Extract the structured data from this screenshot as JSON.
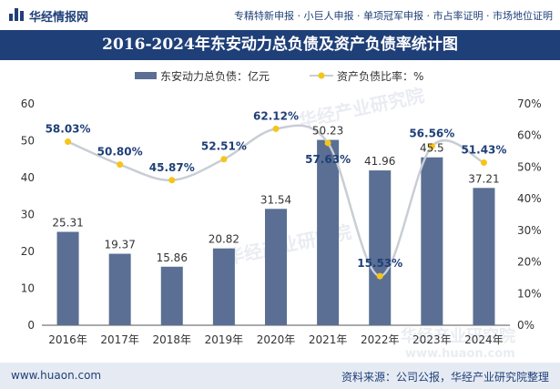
{
  "header": {
    "brand": "华经情报网",
    "tagline": "专精特新申报 · 小巨人申报 · 单项冠军申报 · 市占率证明 · 市场地位证明"
  },
  "footer": {
    "website": "www.huaon.com",
    "source": "资料来源：公司公报，华经产业研究院整理"
  },
  "watermark": {
    "text": "华经产业研究院",
    "url": "www.huaon.com"
  },
  "colors": {
    "bar": "#5a6f93",
    "line": "#c9cdd4",
    "marker": "#f5c518",
    "title_bg": "#1f3f78"
  },
  "chart_data": {
    "type": "bar",
    "title": "2016-2024年东安动力总负债及资产负债率统计图",
    "categories": [
      "2016年",
      "2017年",
      "2018年",
      "2019年",
      "2020年",
      "2021年",
      "2022年",
      "2023年",
      "2024年"
    ],
    "series": [
      {
        "name": "东安动力总负债：亿元",
        "type": "bar",
        "axis": "left",
        "values": [
          25.31,
          19.37,
          15.86,
          20.82,
          31.54,
          50.23,
          41.96,
          45.5,
          37.21
        ],
        "labels": [
          "25.31",
          "19.37",
          "15.86",
          "20.82",
          "31.54",
          "50.23",
          "41.96",
          "45.5",
          "37.21"
        ]
      },
      {
        "name": "资产负债比率：%",
        "type": "line",
        "axis": "right",
        "values": [
          58.03,
          50.8,
          45.87,
          52.51,
          62.12,
          57.63,
          15.53,
          56.56,
          51.43
        ],
        "labels": [
          "58.03%",
          "50.80%",
          "45.87%",
          "52.51%",
          "62.12%",
          "57.63%",
          "15.53%",
          "56.56%",
          "51.43%"
        ]
      }
    ],
    "y_left": {
      "min": 0,
      "max": 60,
      "ticks": [
        "0",
        "10",
        "20",
        "30",
        "40",
        "50",
        "60"
      ]
    },
    "y_right": {
      "min": 0,
      "max": 70,
      "ticks": [
        "0%",
        "10%",
        "20%",
        "30%",
        "40%",
        "50%",
        "60%",
        "70%"
      ]
    },
    "grid": false,
    "legend_position": "top"
  }
}
